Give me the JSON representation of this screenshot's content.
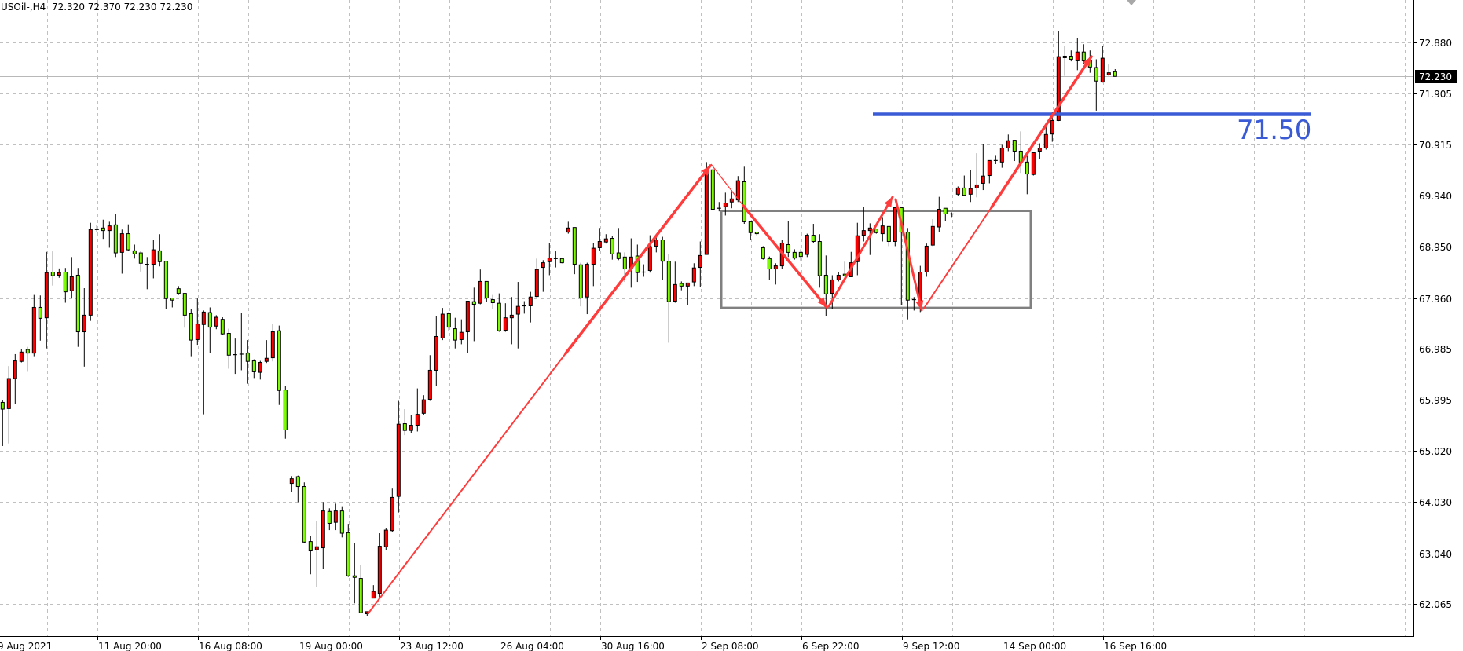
{
  "header": {
    "symbol_timeframe": "USOil-,H4",
    "ohlc_text": "72.320 72.370 72.230 72.230"
  },
  "chart_data": {
    "type": "candlestick",
    "symbol": "USOil-",
    "timeframe": "H4",
    "colors": {
      "bull": "#ff0000",
      "bear": "#7cfc00",
      "wick": "#000000",
      "grid": "#c0c0c0",
      "level_line": "#3a5bd5",
      "arrows": "#ff3b3b",
      "box": "#808080"
    },
    "current_price": "72.230",
    "y_ticks": [
      "72.880",
      "71.905",
      "70.915",
      "69.940",
      "68.950",
      "67.960",
      "66.985",
      "65.995",
      "65.020",
      "64.030",
      "63.040",
      "62.065"
    ],
    "ylim": [
      61.6,
      73.7
    ],
    "x_labels": [
      "9 Aug 2021",
      "11 Aug 20:00",
      "16 Aug 08:00",
      "19 Aug 00:00",
      "23 Aug 12:00",
      "26 Aug 04:00",
      "30 Aug 16:00",
      "2 Sep 08:00",
      "6 Sep 22:00",
      "9 Sep 12:00",
      "14 Sep 00:00",
      "16 Sep 16:00"
    ],
    "grid": true,
    "level": {
      "value": 71.5,
      "label": "71.50"
    },
    "range_box": {
      "top": 69.64,
      "bottom": 67.77
    },
    "ohlc_columns": [
      "open",
      "high",
      "low",
      "close"
    ],
    "ohlc": [
      [
        65.95,
        65.99,
        65.11,
        65.82
      ],
      [
        65.83,
        66.65,
        65.16,
        66.41
      ],
      [
        66.41,
        66.88,
        65.92,
        66.75
      ],
      [
        66.74,
        66.97,
        66.72,
        66.92
      ],
      [
        66.97,
        67.02,
        66.54,
        66.9
      ],
      [
        66.9,
        68.02,
        66.84,
        67.78
      ],
      [
        67.78,
        68.01,
        67.14,
        67.57
      ],
      [
        67.58,
        68.85,
        66.99,
        68.45
      ],
      [
        68.46,
        68.86,
        68.2,
        68.39
      ],
      [
        68.4,
        68.53,
        68.35,
        68.45
      ],
      [
        68.46,
        68.54,
        67.87,
        68.08
      ],
      [
        68.1,
        68.75,
        67.96,
        68.37
      ],
      [
        68.4,
        68.54,
        67.02,
        67.31
      ],
      [
        67.31,
        68.15,
        66.64,
        67.63
      ],
      [
        67.63,
        69.41,
        67.52,
        69.28
      ],
      [
        69.28,
        69.37,
        69.24,
        69.28
      ],
      [
        69.31,
        69.47,
        69.1,
        69.26
      ],
      [
        69.26,
        69.43,
        68.93,
        69.35
      ],
      [
        69.37,
        69.58,
        68.75,
        68.83
      ],
      [
        68.84,
        69.28,
        68.43,
        69.2
      ],
      [
        69.2,
        69.38,
        68.87,
        68.89
      ],
      [
        68.87,
        68.99,
        68.72,
        68.81
      ],
      [
        68.83,
        68.87,
        68.47,
        68.63
      ],
      [
        68.61,
        68.75,
        68.13,
        68.61
      ],
      [
        68.61,
        69.08,
        68.34,
        68.89
      ],
      [
        68.87,
        69.19,
        68.57,
        68.66
      ],
      [
        68.67,
        68.67,
        67.75,
        67.95
      ],
      [
        67.96,
        67.96,
        67.78,
        67.92
      ],
      [
        68.14,
        68.19,
        68.02,
        68.05
      ],
      [
        68.05,
        68.05,
        67.39,
        67.63
      ],
      [
        67.66,
        67.75,
        66.84,
        67.15
      ],
      [
        67.16,
        67.95,
        67.06,
        67.46
      ],
      [
        67.45,
        67.72,
        65.72,
        67.69
      ],
      [
        67.68,
        67.78,
        66.9,
        67.4
      ],
      [
        67.42,
        67.63,
        67.36,
        67.59
      ],
      [
        67.55,
        67.59,
        67.25,
        67.27
      ],
      [
        67.28,
        67.37,
        66.6,
        66.86
      ],
      [
        66.87,
        67.18,
        66.5,
        66.87
      ],
      [
        66.88,
        67.68,
        66.57,
        66.88
      ],
      [
        66.9,
        67.15,
        66.31,
        66.74
      ],
      [
        66.75,
        66.78,
        66.42,
        66.54
      ],
      [
        66.53,
        66.75,
        66.39,
        66.72
      ],
      [
        66.74,
        67.15,
        66.71,
        66.8
      ],
      [
        66.81,
        67.46,
        66.74,
        67.31
      ],
      [
        67.33,
        67.43,
        65.9,
        66.18
      ],
      [
        66.19,
        66.27,
        65.25,
        65.42
      ],
      [
        64.39,
        64.53,
        64.22,
        64.48
      ],
      [
        64.52,
        64.54,
        64.03,
        64.33
      ],
      [
        64.33,
        64.41,
        63.24,
        63.26
      ],
      [
        63.27,
        63.38,
        62.64,
        63.09
      ],
      [
        63.11,
        63.67,
        62.4,
        63.17
      ],
      [
        63.15,
        64.03,
        62.75,
        63.86
      ],
      [
        63.85,
        63.91,
        63.49,
        63.62
      ],
      [
        63.64,
        64.0,
        63.49,
        63.86
      ],
      [
        63.86,
        63.95,
        63.35,
        63.43
      ],
      [
        63.44,
        63.61,
        62.59,
        62.61
      ],
      [
        62.61,
        63.24,
        62.08,
        62.58
      ],
      [
        62.56,
        62.82,
        61.9,
        61.9
      ],
      [
        61.88,
        61.92,
        61.84,
        61.92
      ],
      [
        62.18,
        62.43,
        62.18,
        62.31
      ],
      [
        62.27,
        63.43,
        62.2,
        63.18
      ],
      [
        63.17,
        63.53,
        63.11,
        63.49
      ],
      [
        63.48,
        64.29,
        63.46,
        64.12
      ],
      [
        64.14,
        65.98,
        63.83,
        65.53
      ],
      [
        65.54,
        65.82,
        65.32,
        65.41
      ],
      [
        65.41,
        65.7,
        65.36,
        65.51
      ],
      [
        65.51,
        66.22,
        65.39,
        65.72
      ],
      [
        65.74,
        66.09,
        65.7,
        66.0
      ],
      [
        66.01,
        66.86,
        65.98,
        66.57
      ],
      [
        66.57,
        67.62,
        66.27,
        67.22
      ],
      [
        67.19,
        67.77,
        67.15,
        67.65
      ],
      [
        67.66,
        67.69,
        67.33,
        67.4
      ],
      [
        67.37,
        67.58,
        66.99,
        67.15
      ],
      [
        67.16,
        67.55,
        67.07,
        67.3
      ],
      [
        67.31,
        67.9,
        66.9,
        67.9
      ],
      [
        67.89,
        68.16,
        67.13,
        67.84
      ],
      [
        67.86,
        68.51,
        67.84,
        68.28
      ],
      [
        68.28,
        68.28,
        67.89,
        67.96
      ],
      [
        67.93,
        68.02,
        67.75,
        67.87
      ],
      [
        67.86,
        68.05,
        67.31,
        67.33
      ],
      [
        67.34,
        67.86,
        67.31,
        67.58
      ],
      [
        67.58,
        67.98,
        67.07,
        67.63
      ],
      [
        67.65,
        68.27,
        66.99,
        67.8
      ],
      [
        67.81,
        67.9,
        67.66,
        67.81
      ],
      [
        67.81,
        68.08,
        67.49,
        67.98
      ],
      [
        67.99,
        68.72,
        67.96,
        68.51
      ],
      [
        68.55,
        68.69,
        68.08,
        68.64
      ],
      [
        68.66,
        69.02,
        68.4,
        68.73
      ],
      [
        68.72,
        68.86,
        68.55,
        68.72
      ],
      [
        68.72,
        68.72,
        68.63,
        68.64
      ],
      [
        69.23,
        69.43,
        69.2,
        69.31
      ],
      [
        69.32,
        69.32,
        68.42,
        68.61
      ],
      [
        68.6,
        68.64,
        67.8,
        67.96
      ],
      [
        67.98,
        68.64,
        67.65,
        68.61
      ],
      [
        68.61,
        69.02,
        68.19,
        68.92
      ],
      [
        68.93,
        69.31,
        68.87,
        69.05
      ],
      [
        69.04,
        69.19,
        69.01,
        69.1
      ],
      [
        69.11,
        69.16,
        68.7,
        68.81
      ],
      [
        68.83,
        69.31,
        68.69,
        68.72
      ],
      [
        68.75,
        68.84,
        68.27,
        68.52
      ],
      [
        68.52,
        69.11,
        68.16,
        68.75
      ],
      [
        68.77,
        68.99,
        68.27,
        68.45
      ],
      [
        68.46,
        68.61,
        68.37,
        68.46
      ],
      [
        68.49,
        69.17,
        68.45,
        68.95
      ],
      [
        68.96,
        69.14,
        68.84,
        69.08
      ],
      [
        69.08,
        69.14,
        68.31,
        68.67
      ],
      [
        68.67,
        68.81,
        67.1,
        67.89
      ],
      [
        67.9,
        68.66,
        67.87,
        68.22
      ],
      [
        68.24,
        68.28,
        68.11,
        68.19
      ],
      [
        68.19,
        68.25,
        67.83,
        68.25
      ],
      [
        68.27,
        68.63,
        68.19,
        68.54
      ],
      [
        68.55,
        69.05,
        68.18,
        68.78
      ],
      [
        68.8,
        70.58,
        68.8,
        70.43
      ],
      [
        70.43,
        70.43,
        69.67,
        69.67
      ],
      [
        69.69,
        69.81,
        69.63,
        69.69
      ],
      [
        69.72,
        69.99,
        69.55,
        69.79
      ],
      [
        69.81,
        70.04,
        69.69,
        69.87
      ],
      [
        69.85,
        70.31,
        69.81,
        70.22
      ],
      [
        70.2,
        70.49,
        69.39,
        69.43
      ],
      [
        69.43,
        69.43,
        69.08,
        69.22
      ],
      [
        69.23,
        69.23,
        69.17,
        69.2
      ],
      [
        68.93,
        68.96,
        68.7,
        68.72
      ],
      [
        68.72,
        68.76,
        68.31,
        68.52
      ],
      [
        68.52,
        68.63,
        68.22,
        68.58
      ],
      [
        68.58,
        69.08,
        68.52,
        69.02
      ],
      [
        68.99,
        69.45,
        68.75,
        68.84
      ],
      [
        68.84,
        68.9,
        68.7,
        68.73
      ],
      [
        68.84,
        68.9,
        68.68,
        68.76
      ],
      [
        68.8,
        69.2,
        68.75,
        69.17
      ],
      [
        69.17,
        69.39,
        69.02,
        69.05
      ],
      [
        69.05,
        69.19,
        68.16,
        68.39
      ],
      [
        68.4,
        68.78,
        67.61,
        68.04
      ],
      [
        68.05,
        68.4,
        67.75,
        68.31
      ],
      [
        68.31,
        68.46,
        68.28,
        68.4
      ],
      [
        68.42,
        68.66,
        68.37,
        68.39
      ],
      [
        68.37,
        68.85,
        68.37,
        68.64
      ],
      [
        68.66,
        69.41,
        68.4,
        69.16
      ],
      [
        69.17,
        69.72,
        69.05,
        69.26
      ],
      [
        69.26,
        69.4,
        68.79,
        69.31
      ],
      [
        69.29,
        69.29,
        69.2,
        69.22
      ],
      [
        69.2,
        69.52,
        69.05,
        69.35
      ],
      [
        69.34,
        69.34,
        68.96,
        69.05
      ],
      [
        69.05,
        69.72,
        68.96,
        69.7
      ],
      [
        69.7,
        69.7,
        67.82,
        69.23
      ],
      [
        69.23,
        69.31,
        67.55,
        67.92
      ],
      [
        67.93,
        67.98,
        67.72,
        67.93
      ],
      [
        67.9,
        68.58,
        67.69,
        68.46
      ],
      [
        68.46,
        69.01,
        68.37,
        68.96
      ],
      [
        68.98,
        69.48,
        68.96,
        69.34
      ],
      [
        69.33,
        69.91,
        69.23,
        69.67
      ],
      [
        69.69,
        69.69,
        69.45,
        69.58
      ],
      [
        69.58,
        69.61,
        69.52,
        69.58
      ],
      [
        69.96,
        70.11,
        69.93,
        70.08
      ],
      [
        70.08,
        70.32,
        69.94,
        69.94
      ],
      [
        69.96,
        70.43,
        69.81,
        70.07
      ],
      [
        70.08,
        70.75,
        69.9,
        70.14
      ],
      [
        70.17,
        70.93,
        70.04,
        70.31
      ],
      [
        70.32,
        70.61,
        70.17,
        70.61
      ],
      [
        70.61,
        70.7,
        70.54,
        70.61
      ],
      [
        70.58,
        70.91,
        70.47,
        70.85
      ],
      [
        70.85,
        71.11,
        70.79,
        70.99
      ],
      [
        71.0,
        71.0,
        70.6,
        70.79
      ],
      [
        70.79,
        71.17,
        70.37,
        70.58
      ],
      [
        70.58,
        70.7,
        69.96,
        70.35
      ],
      [
        70.34,
        70.78,
        70.32,
        70.76
      ],
      [
        70.79,
        70.94,
        70.64,
        70.85
      ],
      [
        70.85,
        71.26,
        70.82,
        71.11
      ],
      [
        71.12,
        71.55,
        70.97,
        71.38
      ],
      [
        71.38,
        73.11,
        71.37,
        72.61
      ],
      [
        72.59,
        72.82,
        72.24,
        72.62
      ],
      [
        72.62,
        72.73,
        72.52,
        72.56
      ],
      [
        72.53,
        72.96,
        72.35,
        72.7
      ],
      [
        72.7,
        72.85,
        72.47,
        72.53
      ],
      [
        72.53,
        72.73,
        72.3,
        72.41
      ],
      [
        72.4,
        72.56,
        71.57,
        72.14
      ],
      [
        72.12,
        72.82,
        72.11,
        72.58
      ],
      [
        72.26,
        72.46,
        72.24,
        72.3
      ],
      [
        72.32,
        72.37,
        72.23,
        72.23
      ]
    ]
  }
}
